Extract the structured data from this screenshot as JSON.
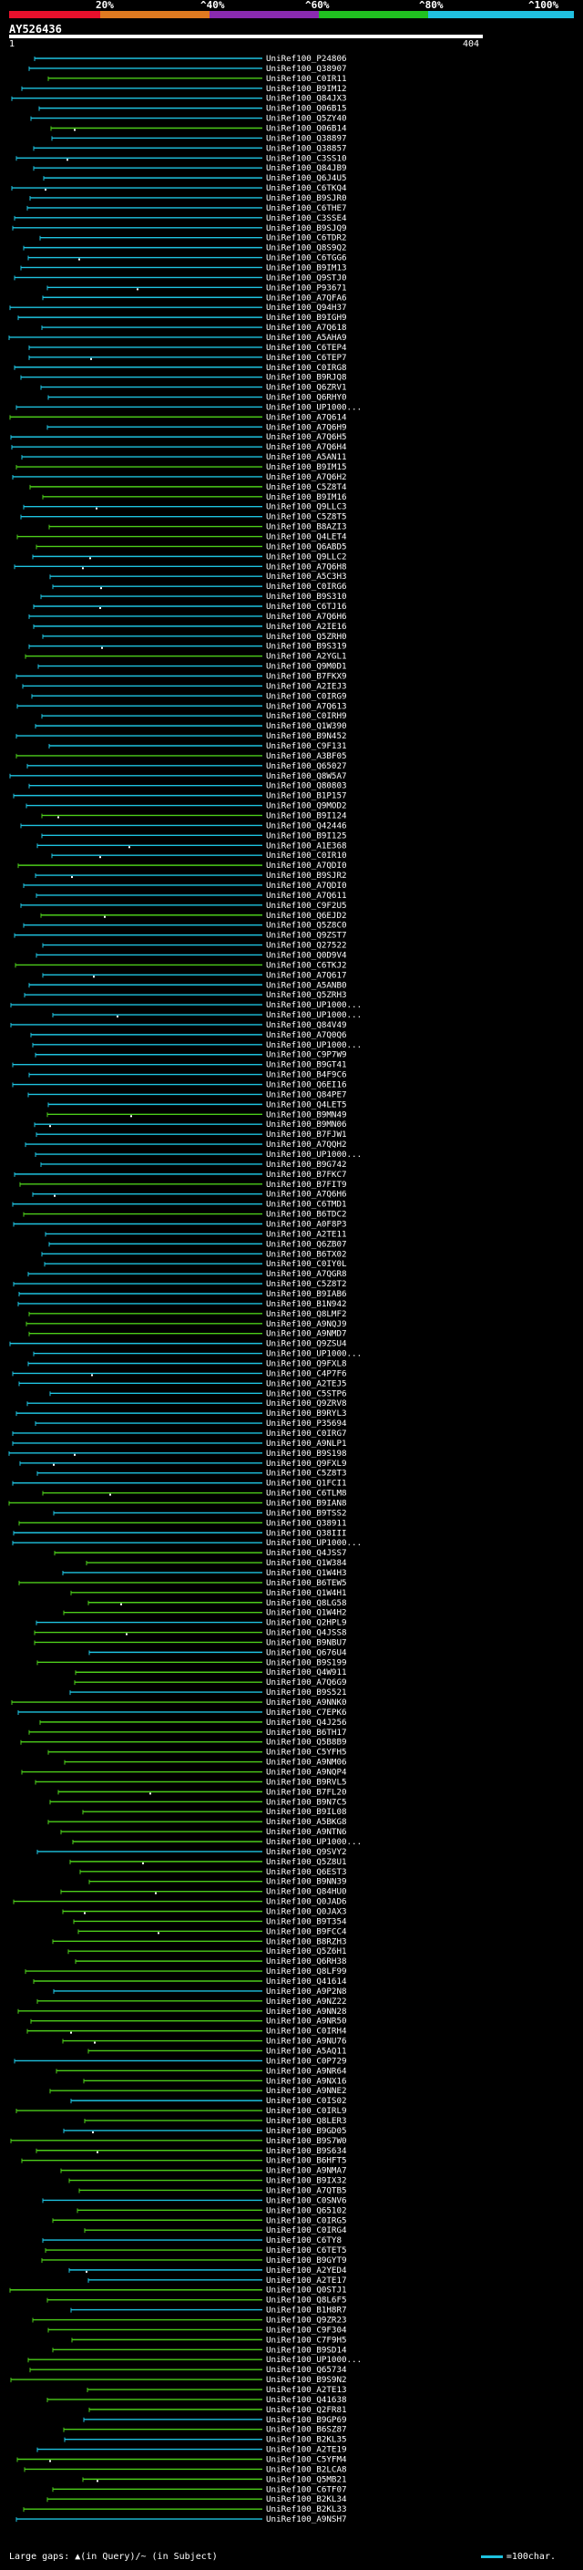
{
  "scale": {
    "labels": [
      "20%",
      "^40%",
      "^60%",
      "^80%",
      "^100%"
    ],
    "colors": [
      "#e8102c",
      "#e07a20",
      "#8a2ab0",
      "#20c020",
      "#20c0e0"
    ]
  },
  "query": {
    "id": "AY526436",
    "start": "1",
    "end": "404"
  },
  "colors": {
    "high": "#1ec2df",
    "mid": "#4ccc1a",
    "background": "#000000"
  },
  "hits": [
    "UniRef100_P24806",
    "UniRef100_Q38907",
    "UniRef100_C0IR11",
    "UniRef100_B9IM12",
    "UniRef100_Q84JX3",
    "UniRef100_Q06B15",
    "UniRef100_Q5ZY40",
    "UniRef100_Q06B14",
    "UniRef100_Q38897",
    "UniRef100_Q38857",
    "UniRef100_C3SS10",
    "UniRef100_Q84JB9",
    "UniRef100_Q6J4U5",
    "UniRef100_C6TKQ4",
    "UniRef100_B9SJR0",
    "UniRef100_C6THE7",
    "UniRef100_C3SSE4",
    "UniRef100_B9SJQ9",
    "UniRef100_C6TDR2",
    "UniRef100_Q8S9Q2",
    "UniRef100_C6TGG6",
    "UniRef100_B9IM13",
    "UniRef100_Q9STJ0",
    "UniRef100_P93671",
    "UniRef100_A7QFA6",
    "UniRef100_Q94H37",
    "UniRef100_B9IGH9",
    "UniRef100_A7Q618",
    "UniRef100_A5AHA9",
    "UniRef100_C6TEP4",
    "UniRef100_C6TEP7",
    "UniRef100_C0IRG8",
    "UniRef100_B9RJQ8",
    "UniRef100_Q6ZRV1",
    "UniRef100_Q6RHY0",
    "UniRef100_UP1000...",
    "UniRef100_A7Q614",
    "UniRef100_A7Q6H9",
    "UniRef100_A7Q6H5",
    "UniRef100_A7Q6H4",
    "UniRef100_A5AN11",
    "UniRef100_B9IM15",
    "UniRef100_A7Q6H2",
    "UniRef100_C5Z8T4",
    "UniRef100_B9IM16",
    "UniRef100_Q9LLC3",
    "UniRef100_C5Z8T5",
    "UniRef100_B8AZI3",
    "UniRef100_Q4LET4",
    "UniRef100_Q6ABD5",
    "UniRef100_Q9LLC2",
    "UniRef100_A7Q6H8",
    "UniRef100_A5C3H3",
    "UniRef100_C0IRG6",
    "UniRef100_B9S310",
    "UniRef100_C6TJ16",
    "UniRef100_A7Q6H6",
    "UniRef100_A2IE16",
    "UniRef100_Q5ZRH0",
    "UniRef100_B9S319",
    "UniRef100_A2YGL1",
    "UniRef100_Q9M0D1",
    "UniRef100_B7FKX9",
    "UniRef100_A2IEJ3",
    "UniRef100_C0IRG9",
    "UniRef100_A7Q613",
    "UniRef100_C0IRH9",
    "UniRef100_Q1W390",
    "UniRef100_B9N452",
    "UniRef100_C9F131",
    "UniRef100_A3BF05",
    "UniRef100_Q65027",
    "UniRef100_Q8W5A7",
    "UniRef100_Q80803",
    "UniRef100_B1P157",
    "UniRef100_Q9MOD2",
    "UniRef100_B9I124",
    "UniRef100_Q42446",
    "UniRef100_B9I125",
    "UniRef100_A1E368",
    "UniRef100_C0IR10",
    "UniRef100_A7QDI0",
    "UniRef100_B9SJR2",
    "UniRef100_A7QDI0",
    "UniRef100_A7Q611",
    "UniRef100_C9F2U5",
    "UniRef100_Q6EJD2",
    "UniRef100_Q5Z8C0",
    "UniRef100_Q9ZST7",
    "UniRef100_Q27522",
    "UniRef100_Q0D9V4",
    "UniRef100_C6TKJ2",
    "UniRef100_A7Q617",
    "UniRef100_A5ANB0",
    "UniRef100_Q5ZRH3",
    "UniRef100_UP1000...",
    "UniRef100_UP1000...",
    "UniRef100_Q84V49",
    "UniRef100_A7Q0Q6",
    "UniRef100_UP1000...",
    "UniRef100_C9P7W9",
    "UniRef100_B9GT41",
    "UniRef100_B4F9C6",
    "UniRef100_Q6EI16",
    "UniRef100_Q84PE7",
    "UniRef100_Q4LET5",
    "UniRef100_B9MN49",
    "UniRef100_B9MN06",
    "UniRef100_B7FJW1",
    "UniRef100_A7QQH2",
    "UniRef100_UP1000...",
    "UniRef100_B9G742",
    "UniRef100_B7FKC7",
    "UniRef100_B7FIT9",
    "UniRef100_A7Q6H6",
    "UniRef100_C6TMD1",
    "UniRef100_B6TDC2",
    "UniRef100_A0F8P3",
    "UniRef100_A2TE11",
    "UniRef100_Q6ZB07",
    "UniRef100_B6TX02",
    "UniRef100_C0IY0L",
    "UniRef100_A7QGR8",
    "UniRef100_C5Z8T2",
    "UniRef100_B9IAB6",
    "UniRef100_B1N942",
    "UniRef100_Q8LMF2",
    "UniRef100_A9NQJ9",
    "UniRef100_A9NMD7",
    "UniRef100_Q9ZSU4",
    "UniRef100_UP1000...",
    "UniRef100_Q9FXL8",
    "UniRef100_C4P7F6",
    "UniRef100_A2TEJ5",
    "UniRef100_C5STP6",
    "UniRef100_Q9ZRV8",
    "UniRef100_B9RYL3",
    "UniRef100_P35694",
    "UniRef100_C0IRG7",
    "UniRef100_A9NLP1",
    "UniRef100_B9S198",
    "UniRef100_Q9FXL9",
    "UniRef100_C5Z8T3",
    "UniRef100_Q1FCI1",
    "UniRef100_C6TLM8",
    "UniRef100_B9IAN8",
    "UniRef100_B9TSS2",
    "UniRef100_Q38911",
    "UniRef100_Q38III",
    "UniRef100_UP1000...",
    "UniRef100_Q4JSS7",
    "UniRef100_Q1W384",
    "UniRef100_Q1W4H3",
    "UniRef100_B6TEW5",
    "UniRef100_Q1W4H1",
    "UniRef100_Q8LG58",
    "UniRef100_Q1W4H2",
    "UniRef100_Q2HPL9",
    "UniRef100_Q4JSS8",
    "UniRef100_B9NBU7",
    "UniRef100_Q676U4",
    "UniRef100_B9S199",
    "UniRef100_Q4W911",
    "UniRef100_A7Q6G9",
    "UniRef100_B9S521",
    "UniRef100_A9NNK0",
    "UniRef100_C7EPK6",
    "UniRef100_Q4J256",
    "UniRef100_B6TH17",
    "UniRef100_Q5B8B9",
    "UniRef100_C5YFH5",
    "UniRef100_A9NM06",
    "UniRef100_A9NQP4",
    "UniRef100_B9RVL5",
    "UniRef100_B7FL20",
    "UniRef100_B9N7C5",
    "UniRef100_B9IL08",
    "UniRef100_A5BKG8",
    "UniRef100_A9NTN6",
    "UniRef100_UP1000...",
    "UniRef100_Q9SVY2",
    "UniRef100_Q5Z8U1",
    "UniRef100_Q6EST3",
    "UniRef100_B9NN39",
    "UniRef100_Q84HU0",
    "UniRef100_Q0JAD6",
    "UniRef100_Q0JAX3",
    "UniRef100_B9T354",
    "UniRef100_B9FCC4",
    "UniRef100_B8RZH3",
    "UniRef100_Q5Z6H1",
    "UniRef100_Q6RH38",
    "UniRef100_Q8LF99",
    "UniRef100_Q41614",
    "UniRef100_A9P2N8",
    "UniRef100_A9NZ22",
    "UniRef100_A9NN28",
    "UniRef100_A9NR50",
    "UniRef100_C0IRH4",
    "UniRef100_A9NU76",
    "UniRef100_A5AQ11",
    "UniRef100_C0P729",
    "UniRef100_A9NR64",
    "UniRef100_A9NX16",
    "UniRef100_A9NNE2",
    "UniRef100_C0IS02",
    "UniRef100_C0IRL9",
    "UniRef100_Q8LER3",
    "UniRef100_B9GD05",
    "UniRef100_B9S7W0",
    "UniRef100_B9S634",
    "UniRef100_B6HFT5",
    "UniRef100_A9NMA7",
    "UniRef100_B9IX32",
    "UniRef100_A7QTB5",
    "UniRef100_C0SNV6",
    "UniRef100_Q65102",
    "UniRef100_C0IRG5",
    "UniRef100_C0IRG4",
    "UniRef100_C6TY8",
    "UniRef100_C6TET5",
    "UniRef100_B9GYT9",
    "UniRef100_A2YED4",
    "UniRef100_A2TE17",
    "UniRef100_Q0STJ1",
    "UniRef100_Q8L6F5",
    "UniRef100_B1H8R7",
    "UniRef100_Q9ZR23",
    "UniRef100_C9F304",
    "UniRef100_C7F9H5",
    "UniRef100_B9SD14",
    "UniRef100_UP1000...",
    "UniRef100_Q65734",
    "UniRef100_B9S9N2",
    "UniRef100_A2TE13",
    "UniRef100_Q41638",
    "UniRef100_Q2FR81",
    "UniRef100_B9GP69",
    "UniRef100_B6SZ87",
    "UniRef100_B2KL35",
    "UniRef100_A2TE19",
    "UniRef100_C5YFM4",
    "UniRef100_B2LCA8",
    "UniRef100_Q5MB21",
    "UniRef100_C6TF07",
    "UniRef100_B2KL34",
    "UniRef100_B2KL33",
    "UniRef100_A9NSH7"
  ]
}
